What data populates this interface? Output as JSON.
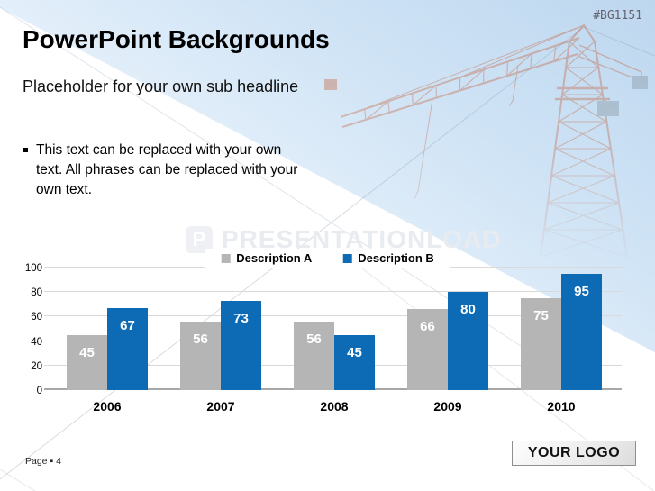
{
  "slide": {
    "ref_code": "#BG1151",
    "title": "PowerPoint Backgrounds",
    "subtitle": "Placeholder for your own sub headline",
    "bullets": [
      "This text can be replaced with your own text. All phrases can be replaced with your own text."
    ],
    "watermark_text": "PRESENTATIONLOAD",
    "watermark_logo_letter": "P",
    "footer_page_text": "Page ▪ 4",
    "logo_placeholder": "YOUR LOGO"
  },
  "chart_data": {
    "type": "bar",
    "title": "",
    "categories": [
      "2006",
      "2007",
      "2008",
      "2009",
      "2010"
    ],
    "series": [
      {
        "name": "Description A",
        "color": "#b5b5b5",
        "values": [
          45,
          56,
          56,
          66,
          75
        ]
      },
      {
        "name": "Description B",
        "color": "#0d6ab4",
        "values": [
          67,
          73,
          45,
          80,
          95
        ]
      }
    ],
    "ylim": [
      0,
      100
    ],
    "yticks": [
      0,
      20,
      40,
      60,
      80,
      100
    ],
    "grid": true,
    "legend_position": "top-center",
    "data_labels": true,
    "data_label_color": "#ffffff"
  },
  "colors": {
    "accent_blue": "#0d6ab4",
    "bar_gray": "#b5b5b5",
    "sky_blue": "#bdd7ef",
    "crane_salmon": "#c4765a",
    "ref_code_text": "#63636f"
  }
}
